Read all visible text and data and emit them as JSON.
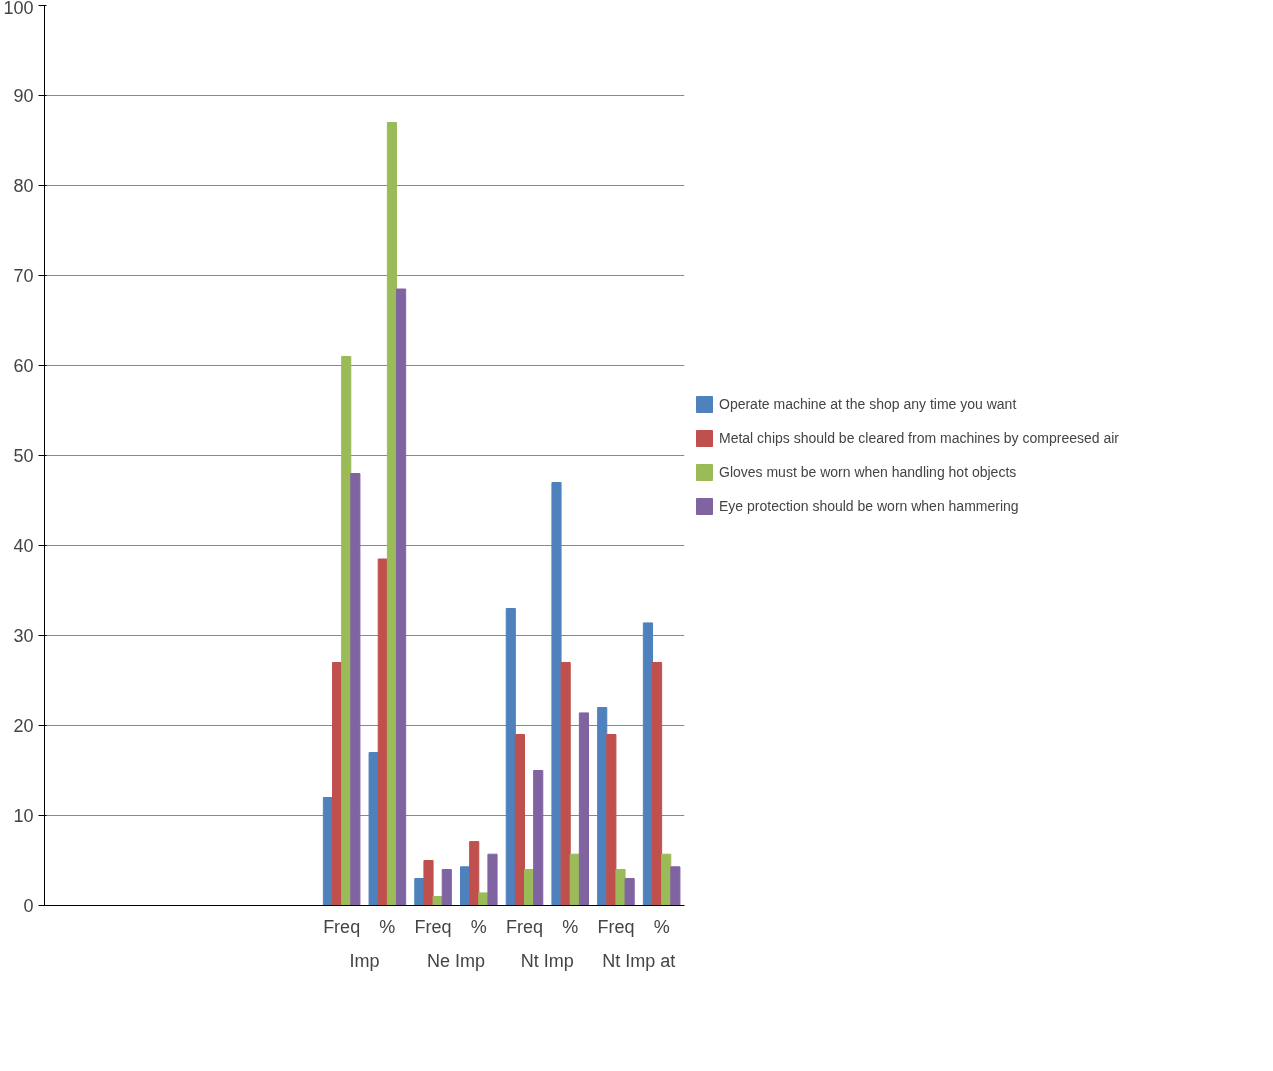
{
  "chart_data": {
    "type": "bar",
    "categories": [
      null,
      null,
      null,
      null,
      null,
      null,
      "Freq",
      "%",
      "Freq",
      "%",
      "Freq",
      "%",
      "Freq",
      "%"
    ],
    "series": [
      {
        "name": "Operate machine at the shop any time you want",
        "color": "#4f81bd",
        "values": [
          null,
          null,
          null,
          null,
          null,
          null,
          12,
          17,
          3,
          4.3,
          33,
          47,
          22,
          31.4
        ]
      },
      {
        "name": "Metal chips should be cleared from machines by compreesed air",
        "color": "#c0504d",
        "values": [
          null,
          null,
          null,
          null,
          null,
          null,
          27,
          38.5,
          5,
          7.1,
          19,
          27,
          19,
          27
        ]
      },
      {
        "name": "Gloves must be worn when handling hot objects",
        "color": "#9bbb59",
        "values": [
          null,
          null,
          null,
          null,
          null,
          null,
          61,
          87,
          1,
          1.4,
          4,
          5.7,
          4,
          5.7
        ]
      },
      {
        "name": "Eye protection should be worn when hammering",
        "color": "#8064a2",
        "values": [
          null,
          null,
          null,
          null,
          null,
          null,
          48,
          68.5,
          4,
          5.7,
          15,
          21.4,
          3,
          4.3
        ]
      }
    ],
    "annotations": [
      "Imp",
      "Ne Imp",
      "Nt Imp",
      "Nt Imp at"
    ],
    "ylim": [
      0,
      100
    ],
    "yticks": [
      0,
      10,
      20,
      30,
      40,
      50,
      60,
      70,
      80,
      90,
      100
    ],
    "grid": "y",
    "legend": "right"
  }
}
